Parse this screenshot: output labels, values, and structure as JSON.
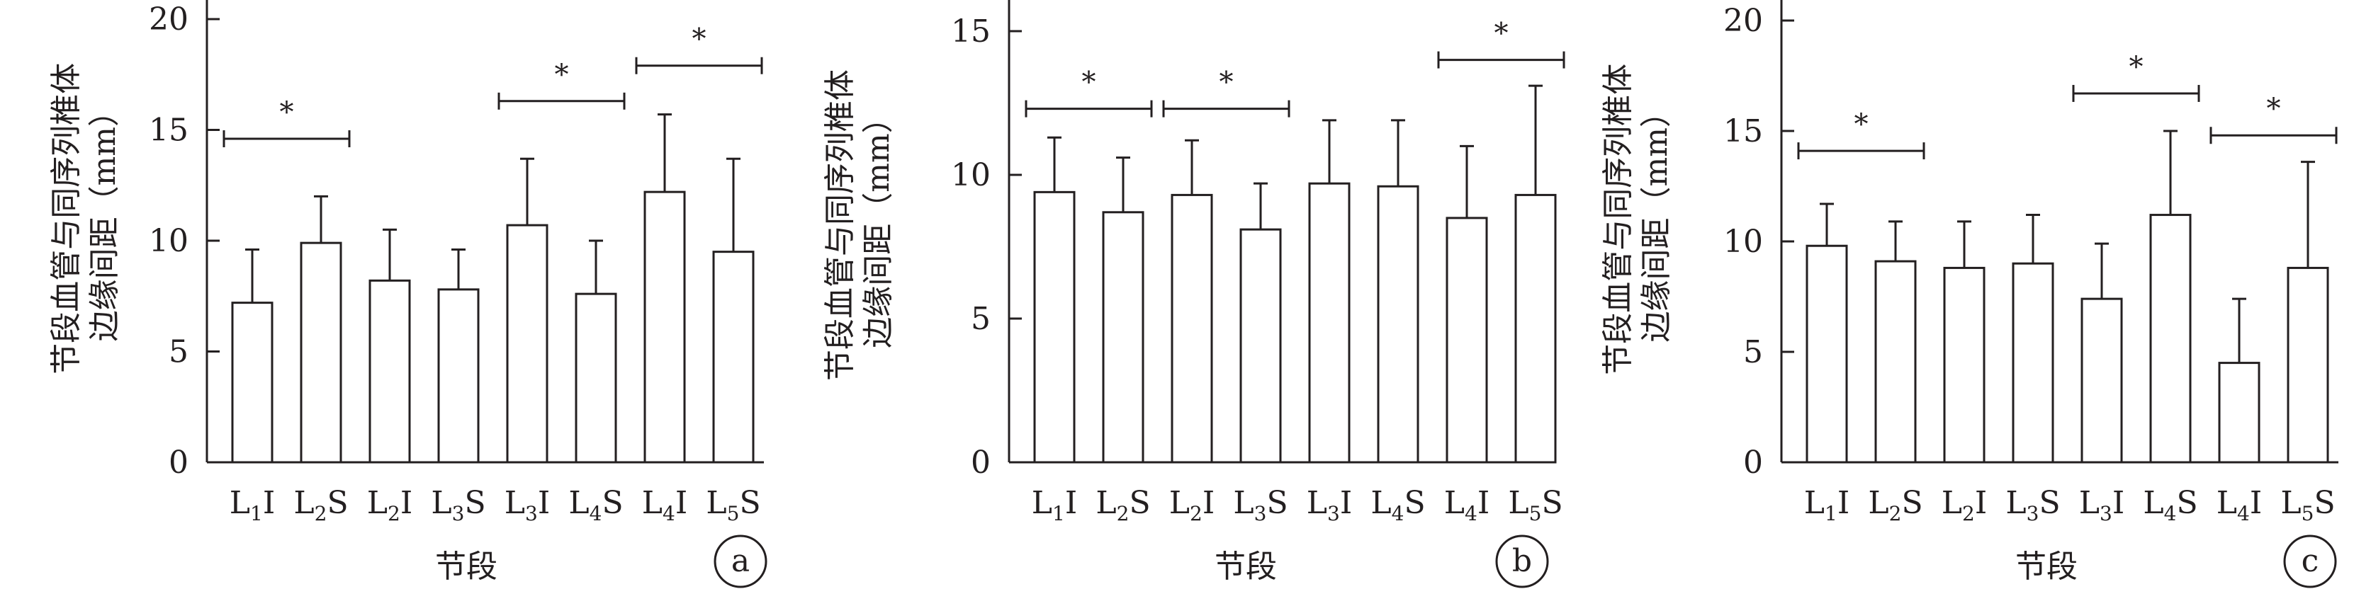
{
  "chart_data": [
    {
      "type": "bar",
      "panel_label": "a",
      "xlabel": "节段",
      "ylabel_lines": [
        "节段血管与同序列椎体",
        "边缘间距（mm）"
      ],
      "ylim": [
        0,
        22
      ],
      "yticks": [
        0,
        5,
        10,
        15,
        20
      ],
      "categories": [
        {
          "main": "L",
          "sub": "1",
          "suffix": "I"
        },
        {
          "main": "L",
          "sub": "2",
          "suffix": "S"
        },
        {
          "main": "L",
          "sub": "2",
          "suffix": "I"
        },
        {
          "main": "L",
          "sub": "3",
          "suffix": "S"
        },
        {
          "main": "L",
          "sub": "3",
          "suffix": "I"
        },
        {
          "main": "L",
          "sub": "4",
          "suffix": "S"
        },
        {
          "main": "L",
          "sub": "4",
          "suffix": "I"
        },
        {
          "main": "L",
          "sub": "5",
          "suffix": "S"
        }
      ],
      "values": [
        7.2,
        9.9,
        8.2,
        7.8,
        10.7,
        7.6,
        12.2,
        9.5
      ],
      "errors": [
        2.4,
        2.1,
        2.3,
        1.8,
        3.0,
        2.4,
        3.5,
        4.2
      ],
      "significance": [
        {
          "from": 0,
          "to": 1,
          "y": 14.6,
          "label": "*"
        },
        {
          "from": 4,
          "to": 5,
          "y": 16.3,
          "label": "*"
        },
        {
          "from": 6,
          "to": 7,
          "y": 17.9,
          "label": "*"
        }
      ],
      "grid": false
    },
    {
      "type": "bar",
      "panel_label": "b",
      "xlabel": "节段",
      "ylabel_lines": [
        "节段血管与同序列椎体",
        "边缘间距（mm）"
      ],
      "ylim": [
        0,
        16.5
      ],
      "yticks": [
        0,
        5,
        10,
        15
      ],
      "categories": [
        {
          "main": "L",
          "sub": "1",
          "suffix": "I"
        },
        {
          "main": "L",
          "sub": "2",
          "suffix": "S"
        },
        {
          "main": "L",
          "sub": "2",
          "suffix": "I"
        },
        {
          "main": "L",
          "sub": "3",
          "suffix": "S"
        },
        {
          "main": "L",
          "sub": "3",
          "suffix": "I"
        },
        {
          "main": "L",
          "sub": "4",
          "suffix": "S"
        },
        {
          "main": "L",
          "sub": "4",
          "suffix": "I"
        },
        {
          "main": "L",
          "sub": "5",
          "suffix": "S"
        }
      ],
      "values": [
        9.4,
        8.7,
        9.3,
        8.1,
        9.7,
        9.6,
        8.5,
        9.3
      ],
      "errors": [
        1.9,
        1.9,
        1.9,
        1.6,
        2.2,
        2.3,
        2.5,
        3.8
      ],
      "significance": [
        {
          "from": 0,
          "to": 1,
          "y": 12.3,
          "label": "*"
        },
        {
          "from": 2,
          "to": 3,
          "y": 12.3,
          "label": "*"
        },
        {
          "from": 6,
          "to": 7,
          "y": 14.0,
          "label": "*"
        }
      ],
      "grid": false
    },
    {
      "type": "bar",
      "panel_label": "c",
      "xlabel": "节段",
      "ylabel_lines": [
        "节段血管与同序列椎体",
        "边缘间距（mm）"
      ],
      "ylim": [
        0,
        22
      ],
      "yticks": [
        0,
        5,
        10,
        15,
        20
      ],
      "categories": [
        {
          "main": "L",
          "sub": "1",
          "suffix": "I"
        },
        {
          "main": "L",
          "sub": "2",
          "suffix": "S"
        },
        {
          "main": "L",
          "sub": "2",
          "suffix": "I"
        },
        {
          "main": "L",
          "sub": "3",
          "suffix": "S"
        },
        {
          "main": "L",
          "sub": "3",
          "suffix": "I"
        },
        {
          "main": "L",
          "sub": "4",
          "suffix": "S"
        },
        {
          "main": "L",
          "sub": "4",
          "suffix": "I"
        },
        {
          "main": "L",
          "sub": "5",
          "suffix": "S"
        }
      ],
      "values": [
        9.8,
        9.1,
        8.8,
        9.0,
        7.4,
        11.2,
        4.5,
        8.8
      ],
      "errors": [
        1.9,
        1.8,
        2.1,
        2.2,
        2.5,
        3.8,
        2.9,
        4.8
      ],
      "significance": [
        {
          "from": 0,
          "to": 1,
          "y": 14.1,
          "label": "*"
        },
        {
          "from": 4,
          "to": 5,
          "y": 16.7,
          "label": "*"
        },
        {
          "from": 6,
          "to": 7,
          "y": 14.8,
          "label": "*"
        }
      ],
      "grid": false
    }
  ]
}
